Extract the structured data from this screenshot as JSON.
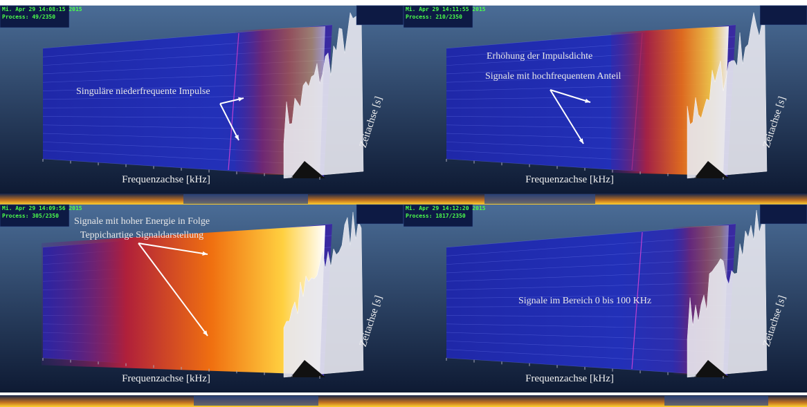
{
  "panels": [
    {
      "timestamp": "Mi. Apr 29 14:08:15 2015",
      "process": "Process: 49/2350",
      "annotations": [
        "Singuläre niederfrequente Impulse"
      ],
      "x_axis_label": "Frequenzachse [kHz]",
      "y_axis_label": "Zeitachse [s]"
    },
    {
      "timestamp": "Mi. Apr 29 14:11:55 2015",
      "process": "Process: 210/2350",
      "annotations": [
        "Erhöhung der Impulsdichte",
        "Signale mit hochfrequentem Anteil"
      ],
      "x_axis_label": "Frequenzachse [kHz]",
      "y_axis_label": "Zeitachse [s]"
    },
    {
      "timestamp": "Mi. Apr 29 14:09:56 2015",
      "process": "Process: 305/2350",
      "annotations": [
        "Signale mit hoher Energie in Folge",
        "Teppichartige Signaldarstellung"
      ],
      "x_axis_label": "Frequenzachse [kHz]",
      "y_axis_label": "Zeitachse [s]"
    },
    {
      "timestamp": "Mi. Apr 29 14:12:20 2015",
      "process": "Process: 1817/2350",
      "annotations": [
        "Signale im Bereich 0 bis 100 KHz"
      ],
      "x_axis_label": "Frequenzachse [kHz]",
      "y_axis_label": "Zeitachse [s]"
    }
  ]
}
